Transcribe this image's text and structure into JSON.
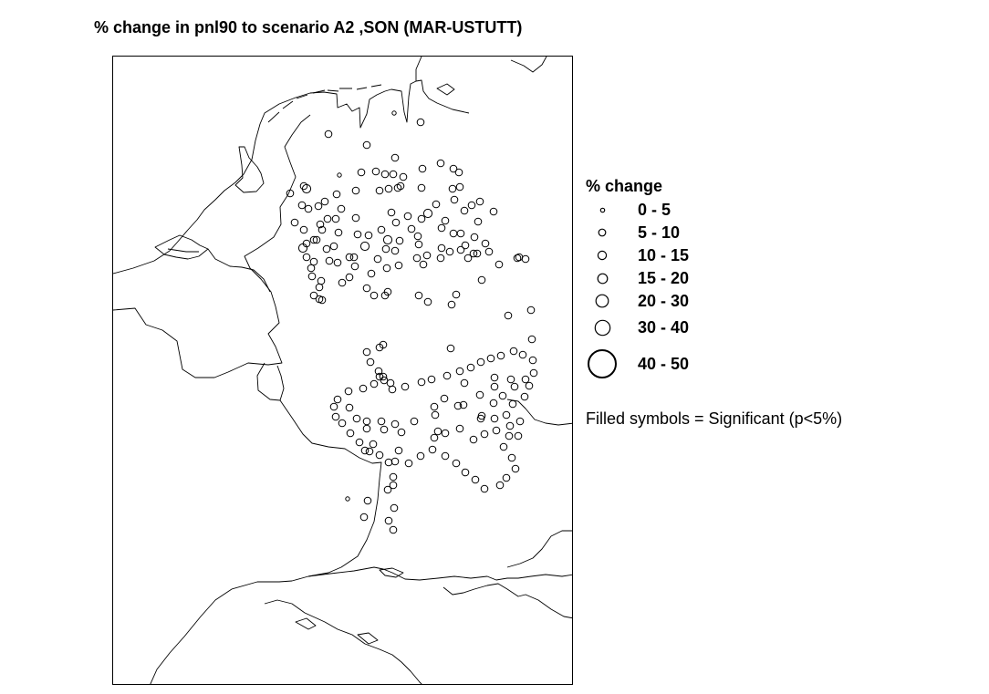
{
  "title": "% change in pnl90 to scenario A2 ,SON (MAR-USTUTT)",
  "legend": {
    "title": "% change",
    "classes": [
      {
        "label": "0 - 5",
        "size": 0
      },
      {
        "label": "5 - 10",
        "size": 1
      },
      {
        "label": "10 - 15",
        "size": 2
      },
      {
        "label": "15 - 20",
        "size": 3
      },
      {
        "label": "20 - 30",
        "size": 4
      },
      {
        "label": "30 - 40",
        "size": 5
      },
      {
        "label": "40 - 50",
        "size": 6
      }
    ],
    "note": "Filled symbols = Significant (p<5%)"
  },
  "map": {
    "stations": [
      [
        308,
        62,
        0
      ],
      [
        337,
        72,
        1
      ],
      [
        236,
        85,
        1
      ],
      [
        278,
        97,
        1
      ],
      [
        309,
        111,
        1
      ],
      [
        359,
        117,
        1
      ],
      [
        339,
        123,
        1
      ],
      [
        248,
        130,
        0
      ],
      [
        373,
        123,
        1
      ],
      [
        379,
        127,
        1
      ],
      [
        272,
        127,
        1
      ],
      [
        288,
        126,
        1
      ],
      [
        298,
        129,
        1
      ],
      [
        307,
        129,
        1
      ],
      [
        318,
        132,
        1
      ],
      [
        312,
        144,
        1
      ],
      [
        338,
        144,
        1
      ],
      [
        372,
        145,
        1
      ],
      [
        315,
        142,
        1
      ],
      [
        385,
        169,
        1
      ],
      [
        402,
        159,
        1
      ],
      [
        209,
        142,
        1
      ],
      [
        194,
        150,
        1
      ],
      [
        212,
        145,
        2
      ],
      [
        245,
        151,
        1
      ],
      [
        266,
        147,
        1
      ],
      [
        292,
        147,
        1
      ],
      [
        302,
        145,
        1
      ],
      [
        380,
        143,
        1
      ],
      [
        374,
        157,
        1
      ],
      [
        232,
        159,
        1
      ],
      [
        214,
        167,
        1
      ],
      [
        250,
        167,
        1
      ],
      [
        266,
        177,
        1
      ],
      [
        244,
        178,
        1
      ],
      [
        199,
        182,
        1
      ],
      [
        227,
        184,
        1
      ],
      [
        209,
        190,
        1
      ],
      [
        247,
        193,
        1
      ],
      [
        268,
        195,
        1
      ],
      [
        294,
        190,
        1
      ],
      [
        310,
        182,
        1
      ],
      [
        305,
        171,
        1
      ],
      [
        323,
        175,
        1
      ],
      [
        327,
        189,
        1
      ],
      [
        400,
        181,
        1
      ],
      [
        373,
        194,
        1
      ],
      [
        381,
        194,
        1
      ],
      [
        338,
        178,
        1
      ],
      [
        334,
        197,
        1
      ],
      [
        345,
        172,
        2
      ],
      [
        354,
        162,
        1
      ],
      [
        393,
        163,
        1
      ],
      [
        364,
        180,
        1
      ],
      [
        360,
        188,
        1
      ],
      [
        301,
        201,
        2
      ],
      [
        335,
        206,
        1
      ],
      [
        386,
        207,
        1
      ],
      [
        417,
        170,
        1
      ],
      [
        207,
        163,
        1
      ],
      [
        225,
        164,
        1
      ],
      [
        235,
        178,
        1
      ],
      [
        229,
        190,
        1
      ],
      [
        220,
        201,
        1
      ],
      [
        212,
        205,
        1
      ],
      [
        223,
        201,
        1
      ],
      [
        234,
        211,
        1
      ],
      [
        242,
        208,
        1
      ],
      [
        280,
        196,
        1
      ],
      [
        276,
        208,
        2
      ],
      [
        299,
        211,
        1
      ],
      [
        314,
        202,
        1
      ],
      [
        309,
        213,
        1
      ],
      [
        360,
        210,
        1
      ],
      [
        396,
        198,
        1
      ],
      [
        408,
        205,
        1
      ],
      [
        412,
        214,
        1
      ],
      [
        395,
        216,
        1
      ],
      [
        381,
        212,
        1
      ],
      [
        344,
        218,
        1
      ],
      [
        333,
        221,
        1
      ],
      [
        259,
        220,
        1
      ],
      [
        264,
        220,
        1
      ],
      [
        265,
        230,
        1
      ],
      [
        290,
        222,
        1
      ],
      [
        246,
        226,
        1
      ],
      [
        208,
        210,
        2
      ],
      [
        212,
        220,
        1
      ],
      [
        220,
        225,
        1
      ],
      [
        217,
        232,
        1
      ],
      [
        237,
        224,
        1
      ],
      [
        218,
        241,
        1
      ],
      [
        228,
        246,
        1
      ],
      [
        226,
        253,
        1
      ],
      [
        251,
        248,
        1
      ],
      [
        259,
        242,
        1
      ],
      [
        283,
        238,
        1
      ],
      [
        300,
        232,
        1
      ],
      [
        313,
        229,
        1
      ],
      [
        340,
        228,
        1
      ],
      [
        359,
        221,
        1
      ],
      [
        369,
        214,
        1
      ],
      [
        389,
        221,
        1
      ],
      [
        399,
        216,
        1
      ],
      [
        443,
        221,
        1
      ],
      [
        452,
        222,
        1
      ],
      [
        423,
        228,
        1
      ],
      [
        445,
        220,
        1
      ],
      [
        404,
        245,
        1
      ],
      [
        278,
        254,
        1
      ],
      [
        301,
        258,
        1
      ],
      [
        286,
        262,
        1
      ],
      [
        298,
        262,
        1
      ],
      [
        220,
        262,
        1
      ],
      [
        226,
        266,
        1
      ],
      [
        229,
        267,
        1
      ],
      [
        335,
        262,
        1
      ],
      [
        376,
        261,
        1
      ],
      [
        345,
        269,
        1
      ],
      [
        371,
        272,
        1
      ],
      [
        458,
        278,
        1
      ],
      [
        433,
        284,
        1
      ],
      [
        459,
        310,
        1
      ],
      [
        292,
        319,
        1
      ],
      [
        296,
        316,
        1
      ],
      [
        278,
        324,
        1
      ],
      [
        282,
        335,
        1
      ],
      [
        291,
        345,
        1
      ],
      [
        292,
        351,
        1
      ],
      [
        297,
        355,
        1
      ],
      [
        306,
        365,
        1
      ],
      [
        309,
        403,
        1
      ],
      [
        276,
        432,
        1
      ],
      [
        281,
        433,
        1
      ],
      [
        313,
        432,
        1
      ],
      [
        307,
        470,
        1
      ],
      [
        308,
        495,
        1
      ],
      [
        257,
        485,
        0
      ],
      [
        279,
        487,
        1
      ],
      [
        275,
        505,
        1
      ],
      [
        302,
        509,
        1
      ],
      [
        307,
        519,
        1
      ],
      [
        370,
        320,
        1
      ],
      [
        452,
        354,
        1
      ],
      [
        403,
        397,
        1
      ],
      [
        384,
        382,
        1
      ],
      [
        352,
        384,
        1
      ],
      [
        330,
        400,
        1
      ],
      [
        316,
        412,
        1
      ],
      [
        302,
        445,
        1
      ],
      [
        307,
        461,
        1
      ],
      [
        301,
        475,
        1
      ],
      [
        353,
        393,
        1
      ],
      [
        363,
        375,
        1
      ],
      [
        402,
        371,
        1
      ],
      [
        385,
        358,
        1
      ],
      [
        418,
        352,
        1
      ],
      [
        418,
        362,
        1
      ],
      [
        436,
        354,
        1
      ],
      [
        440,
        362,
        1
      ],
      [
        417,
        380,
        1
      ],
      [
        427,
        372,
        1
      ],
      [
        378,
        383,
        1
      ],
      [
        296,
        351,
        1
      ],
      [
        259,
        385,
        1
      ],
      [
        267,
        397,
        1
      ],
      [
        294,
        400,
        1
      ],
      [
        278,
        408,
        1
      ],
      [
        278,
        400,
        1
      ],
      [
        297,
        409,
        1
      ],
      [
        356,
        411,
        1
      ],
      [
        364,
        413,
        1
      ],
      [
        352,
        418,
        1
      ],
      [
        380,
        408,
        1
      ],
      [
        395,
        420,
        1
      ],
      [
        407,
        414,
        1
      ],
      [
        420,
        410,
        1
      ],
      [
        435,
        405,
        1
      ],
      [
        446,
        400,
        1
      ],
      [
        444,
        416,
        1
      ],
      [
        434,
        416,
        1
      ],
      [
        428,
        428,
        1
      ],
      [
        437,
        440,
        1
      ],
      [
        441,
        452,
        1
      ],
      [
        431,
        462,
        1
      ],
      [
        424,
        470,
        1
      ],
      [
        407,
        474,
        1
      ],
      [
        397,
        464,
        1
      ],
      [
        386,
        456,
        1
      ],
      [
        376,
        446,
        1
      ],
      [
        364,
        438,
        1
      ],
      [
        350,
        431,
        1
      ],
      [
        337,
        438,
        1
      ],
      [
        324,
        446,
        1
      ],
      [
        309,
        444,
        1
      ],
      [
        292,
        437,
        1
      ],
      [
        285,
        425,
        1
      ],
      [
        270,
        423,
        1
      ],
      [
        260,
        413,
        1
      ],
      [
        251,
        402,
        1
      ],
      [
        244,
        395,
        1
      ],
      [
        242,
        384,
        1
      ],
      [
        246,
        376,
        1
      ],
      [
        258,
        367,
        1
      ],
      [
        274,
        364,
        1
      ],
      [
        286,
        359,
        1
      ],
      [
        304,
        358,
        1
      ],
      [
        320,
        362,
        1
      ],
      [
        338,
        357,
        1
      ],
      [
        349,
        354,
        1
      ],
      [
        366,
        350,
        1
      ],
      [
        380,
        345,
        1
      ],
      [
        392,
        341,
        1
      ],
      [
        403,
        335,
        1
      ],
      [
        414,
        331,
        1
      ],
      [
        425,
        328,
        1
      ],
      [
        439,
        323,
        1
      ],
      [
        449,
        327,
        1
      ],
      [
        460,
        333,
        1
      ],
      [
        461,
        347,
        1
      ],
      [
        456,
        361,
        1
      ],
      [
        451,
        373,
        1
      ],
      [
        438,
        381,
        1
      ],
      [
        431,
        393,
        1
      ],
      [
        418,
        397,
        1
      ],
      [
        404,
        394,
        1
      ]
    ]
  }
}
